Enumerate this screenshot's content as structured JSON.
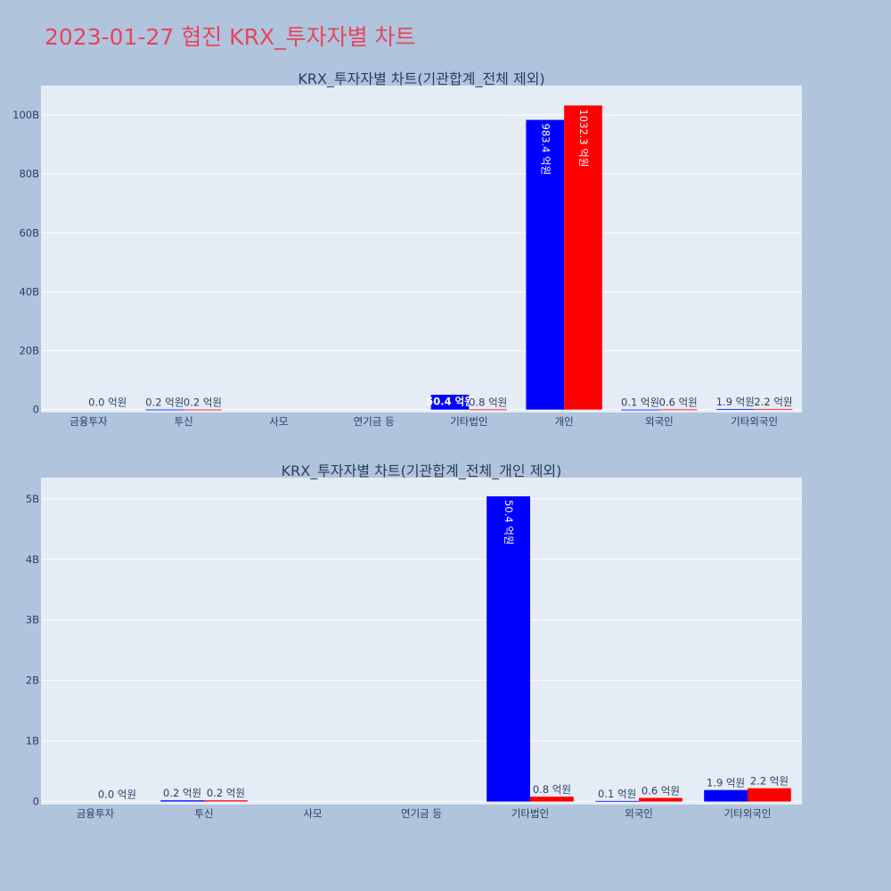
{
  "title": "2023-01-27 협진 KRX_투자자별 차트",
  "colors": {
    "buy": "#0000ff",
    "sell": "#ff0000",
    "plot_bg": "#e5ecf6",
    "page_bg": "#b0c4de",
    "title": "#e8455a"
  },
  "chart_data": [
    {
      "type": "bar",
      "title": "KRX_투자자별 차트(기관합계_전체 제외)",
      "categories": [
        "금융투자",
        "투신",
        "사모",
        "연기금 등",
        "기타법인",
        "개인",
        "외국인",
        "기타외국인"
      ],
      "series": [
        {
          "color": "#0000ff",
          "values": [
            0,
            0.02,
            0,
            0,
            5.04,
            98.34,
            0.01,
            0.19
          ],
          "labels": [
            "",
            "0.2 억원",
            "",
            "",
            "50.4 억원",
            "983.4 억원",
            "0.1 억원",
            "1.9 억원"
          ]
        },
        {
          "color": "#ff0000",
          "values": [
            0,
            0.02,
            0,
            0,
            0.08,
            103.23,
            0.06,
            0.22
          ],
          "labels": [
            "0.0 억원",
            "0.2 억원",
            "",
            "",
            "0.8 억원",
            "1032.3 억원",
            "0.6 억원",
            "2.2 억원"
          ]
        }
      ],
      "y_ticks": [
        "0",
        "20B",
        "40B",
        "60B",
        "80B",
        "100B"
      ],
      "y_tick_values": [
        0,
        20,
        40,
        60,
        80,
        100
      ],
      "ylim": [
        -1,
        110
      ],
      "grid": true
    },
    {
      "type": "bar",
      "title": "KRX_투자자별 차트(기관합계_전체_개인 제외)",
      "categories": [
        "금융투자",
        "투신",
        "사모",
        "연기금 등",
        "기타법인",
        "외국인",
        "기타외국인"
      ],
      "series": [
        {
          "color": "#0000ff",
          "values": [
            0,
            0.02,
            0,
            0,
            5.04,
            0.01,
            0.19
          ],
          "labels": [
            "",
            "0.2 억원",
            "",
            "",
            "50.4 억원",
            "0.1 억원",
            "1.9 억원"
          ]
        },
        {
          "color": "#ff0000",
          "values": [
            0,
            0.02,
            0,
            0,
            0.08,
            0.06,
            0.22
          ],
          "labels": [
            "0.0 억원",
            "0.2 억원",
            "",
            "",
            "0.8 억원",
            "0.6 억원",
            "2.2 억원"
          ]
        }
      ],
      "y_ticks": [
        "0",
        "1B",
        "2B",
        "3B",
        "4B",
        "5B"
      ],
      "y_tick_values": [
        0,
        1,
        2,
        3,
        4,
        5
      ],
      "ylim": [
        -0.05,
        5.35
      ],
      "grid": true
    }
  ]
}
